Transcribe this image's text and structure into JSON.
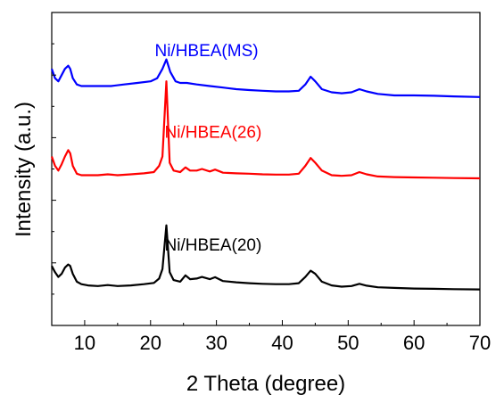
{
  "chart_data": {
    "type": "line",
    "title": "",
    "xlabel": "2 Theta (degree)",
    "ylabel": "Intensity (a.u.)",
    "xlim": [
      5,
      70
    ],
    "ylim": [
      0,
      100
    ],
    "xticks": [
      10,
      20,
      30,
      40,
      50,
      60,
      70
    ],
    "x_tick_labels": [
      "10",
      "20",
      "30",
      "40",
      "50",
      "60",
      "70"
    ],
    "y_tick_labels_shown": false,
    "grid": false,
    "legend": "none",
    "series": [
      {
        "name": "Ni/HBEA(MS)",
        "color": "#0000ff",
        "x": [
          5,
          5.5,
          6,
          6.5,
          7,
          7.5,
          7.8,
          8.2,
          8.8,
          9.5,
          10.5,
          12,
          14,
          16,
          18,
          20,
          21,
          21.8,
          22.4,
          23,
          23.8,
          24.5,
          25.5,
          27,
          29,
          31,
          33,
          35,
          37,
          39,
          41,
          42.5,
          43.5,
          44.3,
          45,
          46,
          47.5,
          49,
          50.5,
          51.7,
          52.8,
          54.5,
          57,
          60,
          63,
          66,
          70
        ],
        "y": [
          82,
          79,
          78,
          80,
          82,
          83,
          82,
          79,
          77,
          76.5,
          76.5,
          76.5,
          76.5,
          77,
          77.5,
          78,
          79,
          82,
          85,
          81,
          78,
          77.5,
          77.5,
          77,
          76.5,
          76,
          75.5,
          75.2,
          75,
          74.8,
          74.8,
          75,
          77,
          79.5,
          78,
          75.5,
          74.5,
          74.2,
          74.5,
          75.5,
          74.8,
          74,
          73.5,
          73.5,
          73.4,
          73.2,
          73
        ]
      },
      {
        "name": "Ni/HBEA(26)",
        "color": "#ff0000",
        "x": [
          5,
          5.5,
          6,
          6.5,
          7,
          7.5,
          7.8,
          8.2,
          8.8,
          9.5,
          10.5,
          12,
          13.5,
          15,
          17,
          19,
          20.5,
          21.3,
          21.8,
          22.4,
          22.9,
          23.5,
          24.5,
          25.3,
          26,
          27,
          27.8,
          29,
          29.8,
          31,
          33,
          35,
          37,
          39,
          41,
          42.5,
          43.5,
          44.3,
          45,
          46,
          47.5,
          49,
          50.5,
          51.7,
          52.8,
          54.5,
          57,
          60,
          63,
          66,
          70
        ],
        "y": [
          54,
          51,
          49.5,
          51.5,
          54,
          56,
          55,
          51,
          48.5,
          48,
          48,
          48,
          48.3,
          48,
          48.3,
          48.6,
          49,
          51,
          54,
          78,
          52,
          49.5,
          49,
          50.5,
          49.5,
          49.5,
          50,
          49.2,
          49.8,
          48.8,
          48.6,
          48.5,
          48.3,
          48.2,
          48.2,
          48.5,
          51,
          53.5,
          52,
          49.5,
          48,
          47.8,
          48,
          49,
          48.3,
          47.6,
          47.4,
          47.3,
          47.2,
          47.1,
          47
        ]
      },
      {
        "name": "Ni/HBEA(20)",
        "color": "#000000",
        "x": [
          5,
          5.5,
          6,
          6.5,
          7,
          7.5,
          7.8,
          8.2,
          8.8,
          9.5,
          10.5,
          12,
          13.5,
          15,
          17,
          19,
          20.5,
          21.3,
          21.8,
          22.4,
          22.9,
          23.5,
          24.5,
          25.3,
          26,
          27,
          27.8,
          29,
          29.8,
          31,
          33,
          35,
          37,
          39,
          41,
          42.5,
          43.5,
          44.3,
          45,
          46,
          47.5,
          49,
          50.5,
          51.7,
          52.8,
          54.5,
          57,
          60,
          63,
          66,
          70
        ],
        "y": [
          19,
          17,
          15.5,
          16.5,
          18.5,
          19.5,
          19,
          16.5,
          14,
          13.2,
          12.8,
          12.6,
          12.9,
          12.6,
          12.8,
          13.2,
          13.6,
          15,
          18,
          32,
          17,
          14.5,
          14,
          16,
          14.8,
          15,
          15.5,
          14.8,
          15.4,
          14.2,
          13.8,
          13.5,
          13.3,
          13.2,
          13.2,
          13.5,
          15.5,
          17.5,
          16.5,
          14,
          12.8,
          12.4,
          12.6,
          13.3,
          12.7,
          12.2,
          12,
          11.8,
          11.7,
          11.6,
          11.5
        ]
      }
    ],
    "annotations": [
      {
        "text": "Ni/HBEA(MS)",
        "color": "#0000ff",
        "x": 28.5,
        "y": 86
      },
      {
        "text": "Ni/HBEA(26)",
        "color": "#ff0000",
        "x": 29.5,
        "y": 60
      },
      {
        "text": "Ni/HBEA(20)",
        "color": "#000000",
        "x": 29.5,
        "y": 24
      }
    ]
  }
}
